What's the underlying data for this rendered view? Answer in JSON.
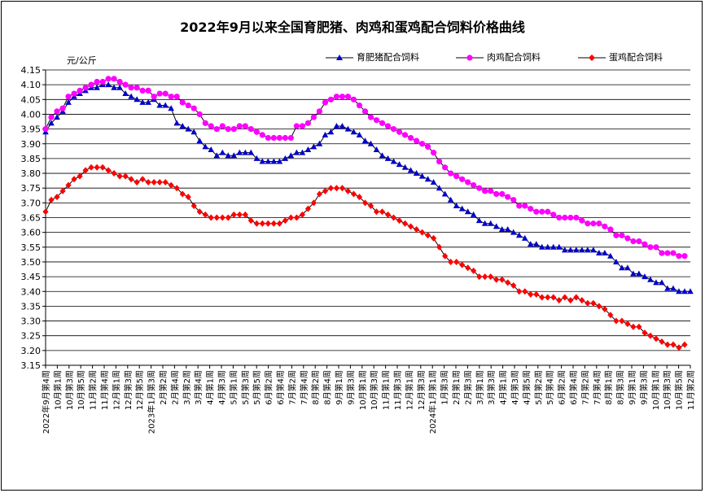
{
  "chart_data": {
    "type": "line",
    "title": "2022年9月以来全国育肥猪、肉鸡和蛋鸡配合饲料价格曲线",
    "unit": "元/公斤",
    "ylim": [
      3.15,
      4.15
    ],
    "yticks": [
      "4.15",
      "4.10",
      "4.05",
      "4.00",
      "3.95",
      "3.90",
      "3.85",
      "3.80",
      "3.75",
      "3.70",
      "3.65",
      "3.60",
      "3.55",
      "3.50",
      "3.45",
      "3.40",
      "3.35",
      "3.30",
      "3.25",
      "3.20",
      "3.15"
    ],
    "grid": "horizontal",
    "legend_position": "top-right",
    "x_labels": [
      "2022年9月第4周",
      "10月第1周",
      "10月第3周",
      "10月第5周",
      "11月第2周",
      "11月第4周",
      "12月第1周",
      "12月第3周",
      "12月第5周",
      "2023年1月第3周",
      "2月第2周",
      "2月第4周",
      "3月第2周",
      "3月第4周",
      "4月第1周",
      "4月第3周",
      "5月第1周",
      "5月第3周",
      "5月第5周",
      "6月第2周",
      "6月第4周",
      "7月第2周",
      "7月第4周",
      "8月第2周",
      "8月第4周",
      "9月第1周",
      "9月第3周",
      "10月第1周",
      "10月第3周",
      "11月第1周",
      "11月第3周",
      "12月第1周",
      "12月第3周",
      "2024年1月第1周",
      "1月第3周",
      "2月第1周",
      "2月第3周",
      "3月第1周",
      "3月第3周",
      "4月第1周",
      "4月第3周",
      "4月第5周",
      "5月第2周",
      "5月第4周",
      "6月第2周",
      "6月第4周",
      "7月第2周",
      "7月第4周",
      "8月第1周",
      "8月第3周",
      "9月第1周",
      "9月第3周",
      "10月第1周",
      "10月第3周",
      "10月第5周",
      "11月第2周"
    ],
    "series": [
      {
        "name": "育肥猪配合饲料",
        "color": "#0000cc",
        "line_color": "#000000",
        "marker": "triangle",
        "values": [
          3.94,
          3.97,
          3.99,
          4.01,
          4.04,
          4.06,
          4.07,
          4.08,
          4.09,
          4.09,
          4.1,
          4.1,
          4.09,
          4.09,
          4.07,
          4.06,
          4.05,
          4.04,
          4.04,
          4.05,
          4.03,
          4.03,
          4.02,
          3.97,
          3.96,
          3.95,
          3.94,
          3.91,
          3.89,
          3.88,
          3.86,
          3.87,
          3.86,
          3.86,
          3.87,
          3.87,
          3.87,
          3.85,
          3.84,
          3.84,
          3.84,
          3.84,
          3.85,
          3.86,
          3.87,
          3.87,
          3.88,
          3.89,
          3.9,
          3.93,
          3.94,
          3.96,
          3.96,
          3.95,
          3.94,
          3.93,
          3.91,
          3.9,
          3.88,
          3.86,
          3.85,
          3.84,
          3.83,
          3.82,
          3.81,
          3.8,
          3.79,
          3.78,
          3.77,
          3.75,
          3.73,
          3.71,
          3.69,
          3.68,
          3.67,
          3.66,
          3.64,
          3.63,
          3.63,
          3.62,
          3.61,
          3.61,
          3.6,
          3.59,
          3.58,
          3.56,
          3.56,
          3.55,
          3.55,
          3.55,
          3.55,
          3.54,
          3.54,
          3.54,
          3.54,
          3.54,
          3.54,
          3.53,
          3.53,
          3.52,
          3.5,
          3.48,
          3.48,
          3.46,
          3.46,
          3.45,
          3.44,
          3.43,
          3.43,
          3.41,
          3.41,
          3.4,
          3.4,
          3.4
        ]
      },
      {
        "name": "肉鸡配合饲料",
        "color": "#ff00ff",
        "line_color": "#000000",
        "marker": "circle",
        "values": [
          3.95,
          3.99,
          4.01,
          4.02,
          4.06,
          4.07,
          4.08,
          4.09,
          4.1,
          4.11,
          4.11,
          4.12,
          4.12,
          4.11,
          4.1,
          4.09,
          4.09,
          4.08,
          4.08,
          4.06,
          4.07,
          4.07,
          4.06,
          4.06,
          4.04,
          4.03,
          4.02,
          4.0,
          3.97,
          3.96,
          3.95,
          3.96,
          3.95,
          3.95,
          3.96,
          3.96,
          3.95,
          3.94,
          3.93,
          3.92,
          3.92,
          3.92,
          3.92,
          3.92,
          3.96,
          3.96,
          3.97,
          3.99,
          4.01,
          4.04,
          4.05,
          4.06,
          4.06,
          4.06,
          4.05,
          4.03,
          4.01,
          3.99,
          3.98,
          3.97,
          3.96,
          3.95,
          3.94,
          3.93,
          3.92,
          3.91,
          3.9,
          3.89,
          3.87,
          3.84,
          3.82,
          3.8,
          3.79,
          3.78,
          3.77,
          3.76,
          3.75,
          3.74,
          3.74,
          3.73,
          3.73,
          3.72,
          3.71,
          3.69,
          3.69,
          3.68,
          3.67,
          3.67,
          3.67,
          3.66,
          3.65,
          3.65,
          3.65,
          3.65,
          3.64,
          3.63,
          3.63,
          3.63,
          3.62,
          3.61,
          3.59,
          3.59,
          3.58,
          3.57,
          3.57,
          3.56,
          3.55,
          3.55,
          3.53,
          3.53,
          3.53,
          3.52,
          3.52
        ]
      },
      {
        "name": "蛋鸡配合饲料",
        "color": "#ff0000",
        "line_color": "#000000",
        "marker": "diamond",
        "values": [
          3.67,
          3.71,
          3.72,
          3.74,
          3.76,
          3.78,
          3.79,
          3.81,
          3.82,
          3.82,
          3.82,
          3.81,
          3.8,
          3.79,
          3.79,
          3.78,
          3.77,
          3.78,
          3.77,
          3.77,
          3.77,
          3.77,
          3.76,
          3.75,
          3.73,
          3.72,
          3.69,
          3.67,
          3.66,
          3.65,
          3.65,
          3.65,
          3.65,
          3.66,
          3.66,
          3.66,
          3.64,
          3.63,
          3.63,
          3.63,
          3.63,
          3.63,
          3.64,
          3.65,
          3.65,
          3.66,
          3.68,
          3.7,
          3.73,
          3.74,
          3.75,
          3.75,
          3.75,
          3.74,
          3.73,
          3.72,
          3.7,
          3.69,
          3.67,
          3.67,
          3.66,
          3.65,
          3.64,
          3.63,
          3.62,
          3.61,
          3.6,
          3.59,
          3.58,
          3.55,
          3.52,
          3.5,
          3.5,
          3.49,
          3.48,
          3.47,
          3.45,
          3.45,
          3.45,
          3.44,
          3.44,
          3.43,
          3.42,
          3.4,
          3.4,
          3.39,
          3.39,
          3.38,
          3.38,
          3.38,
          3.37,
          3.38,
          3.37,
          3.38,
          3.37,
          3.36,
          3.36,
          3.35,
          3.34,
          3.32,
          3.3,
          3.3,
          3.29,
          3.28,
          3.28,
          3.26,
          3.25,
          3.24,
          3.23,
          3.22,
          3.22,
          3.21,
          3.22
        ]
      }
    ]
  }
}
